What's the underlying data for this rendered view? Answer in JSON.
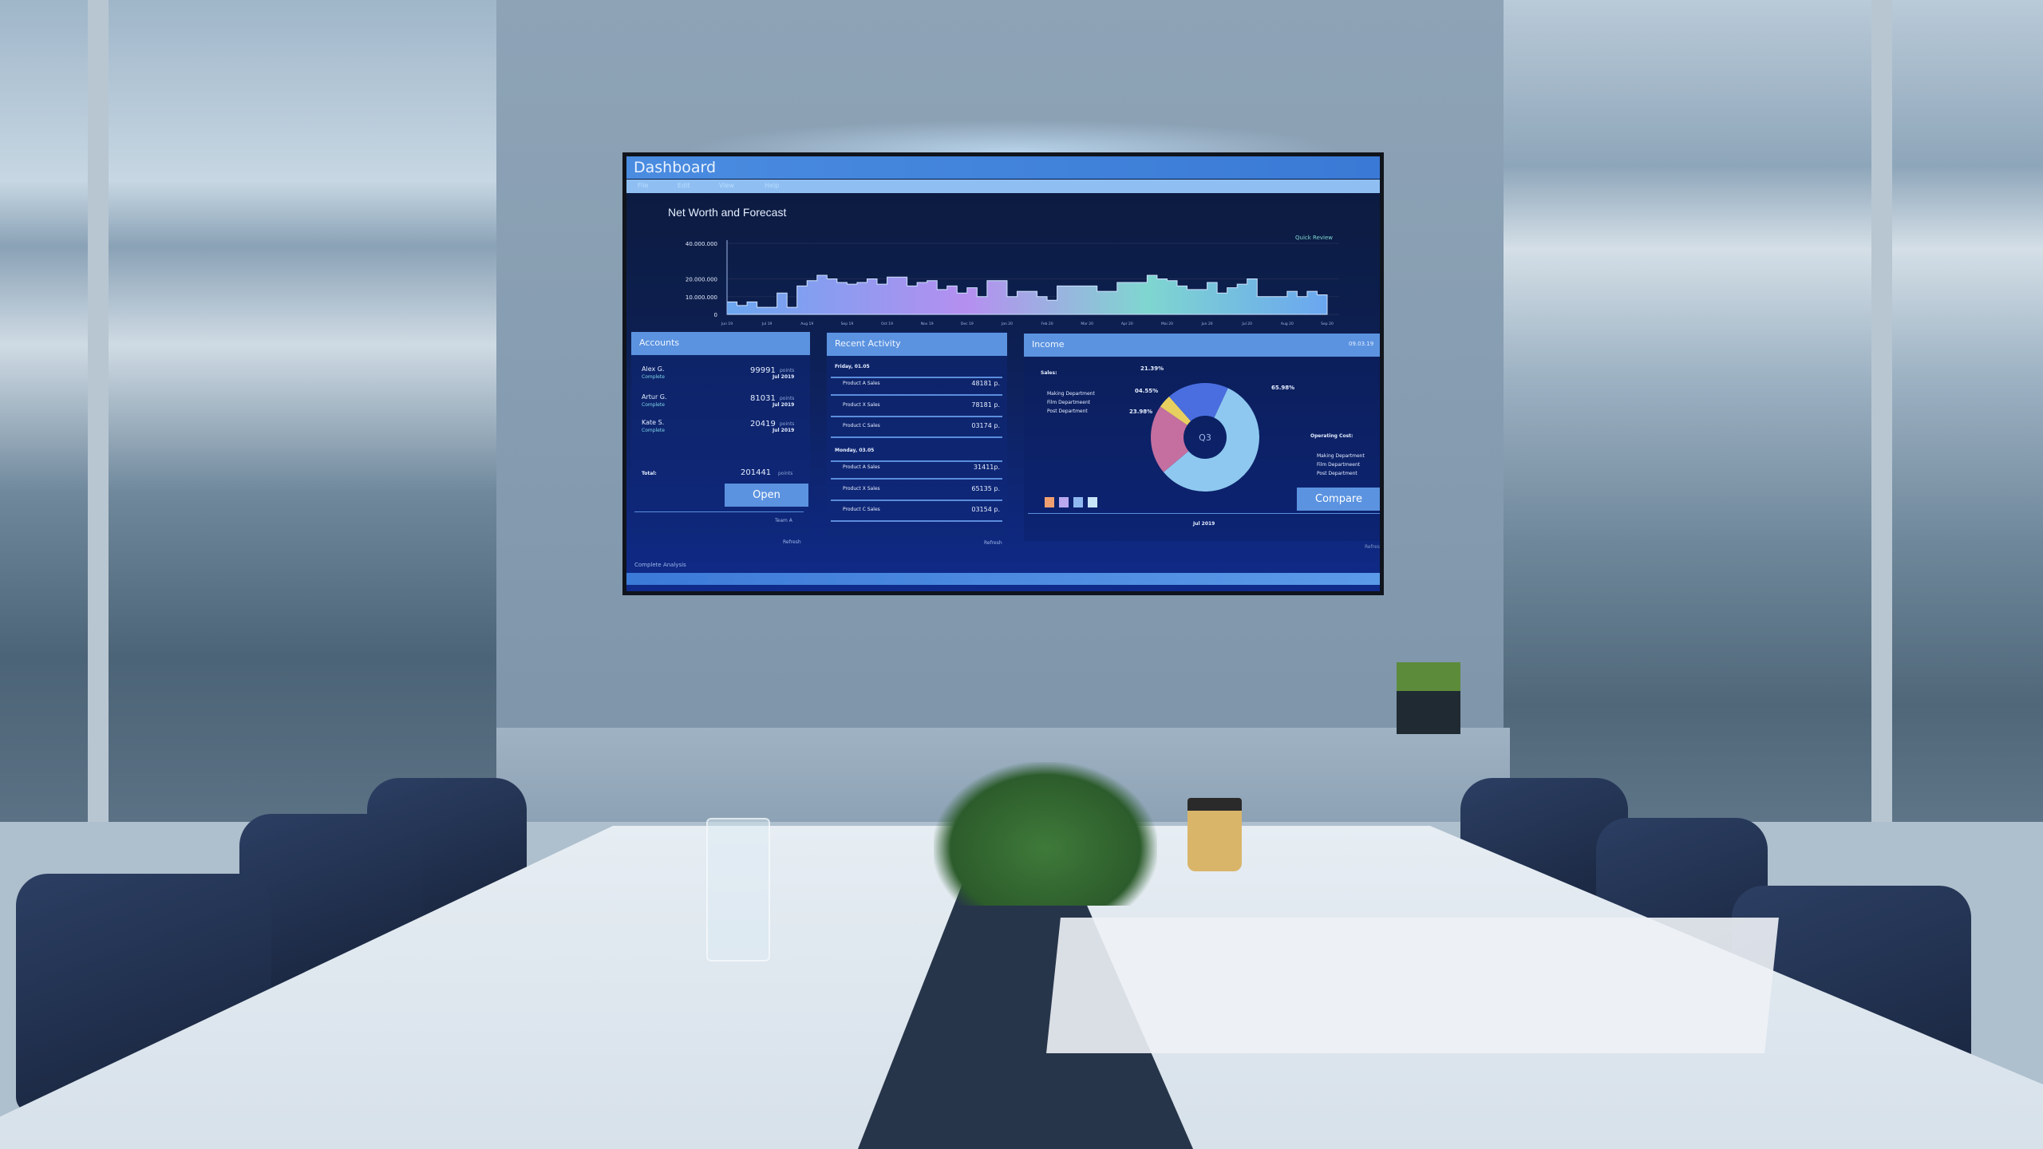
{
  "dashboard": {
    "title": "Dashboard",
    "menu": [
      "File",
      "Edit",
      "View",
      "Help"
    ],
    "footer_link": "Complete Analysis"
  },
  "chart_data": {
    "type": "area",
    "title": "Net Worth and Forecast",
    "link": "Quick Review",
    "y_ticks": [
      "40.000.000",
      "20.000.000",
      "10.000.000",
      "0"
    ],
    "ylim": [
      0,
      40000000
    ],
    "x_ticks": [
      "Jun 19",
      "Jul 19",
      "Aug 19",
      "Sep 19",
      "Oct 19",
      "Nov 19",
      "Dec 19",
      "Jan 20",
      "Feb 20",
      "Mar 20",
      "Apr 20",
      "Mai 20",
      "Jun 20",
      "Jul 20",
      "Aug 20",
      "Sep 20"
    ],
    "values_millions": [
      7,
      5,
      7,
      4,
      4,
      12,
      4,
      16,
      19,
      22,
      20,
      18,
      17,
      18,
      20,
      17,
      21,
      21,
      16,
      18,
      19,
      14,
      16,
      12,
      15,
      10,
      19,
      19,
      10,
      13,
      13,
      10,
      8,
      16,
      16,
      16,
      16,
      13,
      13,
      18,
      18,
      18,
      22,
      20,
      19,
      16,
      14,
      14,
      18,
      12,
      15,
      17,
      20,
      10,
      10,
      10,
      13,
      10,
      13,
      11
    ],
    "grid": true,
    "colors": [
      "#6aa6f0",
      "#b58ff0",
      "#7fd6d0"
    ]
  },
  "accounts": {
    "title": "Accounts",
    "rows": [
      {
        "name": "Alex G.",
        "status": "Complete",
        "value": "99991",
        "unit": "points",
        "date": "Jul 2019"
      },
      {
        "name": "Artur G.",
        "status": "Complete",
        "value": "81031",
        "unit": "points",
        "date": "Jul 2019"
      },
      {
        "name": "Kate S.",
        "status": "Complete",
        "value": "20419",
        "unit": "points",
        "date": "Jul 2019"
      }
    ],
    "total_label": "Total:",
    "total_value": "201441",
    "total_unit": "points",
    "open_label": "Open",
    "team": "Team A",
    "refresh": "Refresh"
  },
  "recent": {
    "title": "Recent Activity",
    "groups": [
      {
        "date": "Friday, 01.05",
        "items": [
          {
            "label": "Product A Sales",
            "value": "48181 p."
          },
          {
            "label": "Product X Sales",
            "value": "78181 p."
          },
          {
            "label": "Product C Sales",
            "value": "03174 p."
          }
        ]
      },
      {
        "date": "Monday, 03.05",
        "items": [
          {
            "label": "Product A Sales",
            "value": "31411p."
          },
          {
            "label": "Product X Sales",
            "value": "65135 p."
          },
          {
            "label": "Product C Sales",
            "value": "03154 p."
          }
        ]
      }
    ],
    "refresh": "Refresh"
  },
  "income": {
    "title": "Income",
    "date": "09.03.19",
    "sales_label": "Sales:",
    "departments": [
      "Making Department",
      "Film Departmeent",
      "Post Department"
    ],
    "operating_label": "Operating Cost:",
    "center": "Q3",
    "slices": [
      {
        "label": "65.98%",
        "value": 65.98,
        "color": "#8ec8f0"
      },
      {
        "label": "23.98%",
        "value": 23.98,
        "color": "#c46fa0"
      },
      {
        "label": "04.55%",
        "value": 4.55,
        "color": "#e8d060"
      },
      {
        "label": "21.39%",
        "value": 21.39,
        "color": "#4a6ee0"
      }
    ],
    "swatches": [
      "#f0a070",
      "#b9a8f0",
      "#8fb8f0",
      "#c8e4f8"
    ],
    "compare_label": "Compare",
    "period": "Jul 2019",
    "refresh": "Refresh"
  }
}
